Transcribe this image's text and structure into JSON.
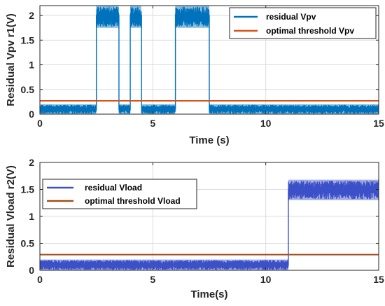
{
  "chart_data": [
    {
      "type": "line",
      "xlabel": "Time (s)",
      "ylabel": "Residual Vpv r1(V)",
      "xlim": [
        0,
        15
      ],
      "ylim": [
        0,
        2.2
      ],
      "xticks": [
        "0",
        "5",
        "10",
        "15"
      ],
      "yticks": [
        "0",
        "0.5",
        "1",
        "1.5",
        "2"
      ],
      "grid": true,
      "legend_position": "top-right",
      "series": [
        {
          "name": "residual Vpv",
          "color": "#0072BD",
          "points": [
            [
              0,
              0.1
            ],
            [
              2.5,
              0.1
            ],
            [
              2.5,
              2.0
            ],
            [
              3.5,
              2.0
            ],
            [
              3.5,
              0.1
            ],
            [
              4.0,
              0.1
            ],
            [
              4.0,
              2.0
            ],
            [
              4.5,
              2.0
            ],
            [
              4.5,
              0.1
            ],
            [
              6.0,
              0.1
            ],
            [
              6.0,
              2.0
            ],
            [
              7.5,
              2.0
            ],
            [
              7.5,
              0.1
            ],
            [
              15,
              0.1
            ]
          ],
          "band_low": [
            [
              0,
              0.0
            ],
            [
              2.5,
              0.0
            ],
            [
              2.5,
              1.75
            ],
            [
              3.5,
              1.75
            ],
            [
              3.5,
              0.0
            ],
            [
              4.0,
              0.0
            ],
            [
              4.0,
              1.75
            ],
            [
              4.5,
              1.75
            ],
            [
              4.5,
              0.0
            ],
            [
              6.0,
              0.0
            ],
            [
              6.0,
              1.75
            ],
            [
              7.5,
              1.75
            ],
            [
              7.5,
              0.0
            ],
            [
              15,
              0.0
            ]
          ],
          "band_high": [
            [
              0,
              0.2
            ],
            [
              2.5,
              0.2
            ],
            [
              2.5,
              2.2
            ],
            [
              3.5,
              2.2
            ],
            [
              3.5,
              0.2
            ],
            [
              4.0,
              0.2
            ],
            [
              4.0,
              2.2
            ],
            [
              4.5,
              2.2
            ],
            [
              4.5,
              0.2
            ],
            [
              6.0,
              0.2
            ],
            [
              6.0,
              2.2
            ],
            [
              7.5,
              2.2
            ],
            [
              7.5,
              0.2
            ],
            [
              15,
              0.2
            ]
          ]
        },
        {
          "name": "optimal threshold Vpv",
          "color": "#D95319",
          "points": [
            [
              0,
              0.27
            ],
            [
              15,
              0.27
            ]
          ]
        }
      ]
    },
    {
      "type": "line",
      "xlabel": "Time(s)",
      "ylabel": "Residual Vload r2(V)",
      "xlim": [
        0,
        15
      ],
      "ylim": [
        0,
        2
      ],
      "xticks": [
        "0",
        "5",
        "10",
        "15"
      ],
      "yticks": [
        "0",
        "0.5",
        "1",
        "1.5",
        "2"
      ],
      "grid": true,
      "legend_position": "top-left",
      "series": [
        {
          "name": "residual Vload",
          "color": "#3C50C8",
          "points": [
            [
              0,
              0.1
            ],
            [
              11.0,
              0.1
            ],
            [
              11.0,
              1.5
            ],
            [
              15,
              1.5
            ]
          ],
          "band_low": [
            [
              0,
              0.0
            ],
            [
              11.0,
              0.0
            ],
            [
              11.0,
              1.3
            ],
            [
              15,
              1.3
            ]
          ],
          "band_high": [
            [
              0,
              0.2
            ],
            [
              11.0,
              0.2
            ],
            [
              11.0,
              1.68
            ],
            [
              15,
              1.68
            ]
          ]
        },
        {
          "name": "optimal threshold Vload",
          "color": "#A0501E",
          "points": [
            [
              0,
              0.29
            ],
            [
              15,
              0.29
            ]
          ]
        }
      ]
    }
  ]
}
